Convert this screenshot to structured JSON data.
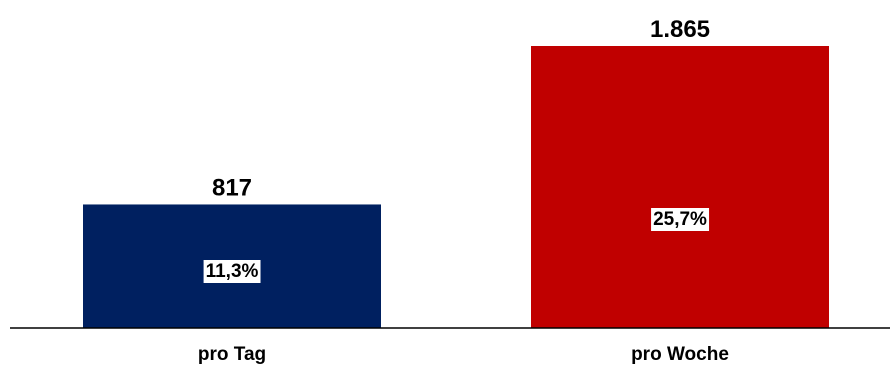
{
  "chart_data": {
    "type": "bar",
    "categories": [
      "pro Tag",
      "pro Woche"
    ],
    "values": [
      817,
      1865
    ],
    "value_labels": [
      "817",
      "1.865"
    ],
    "inner_labels": [
      "11,3%",
      "25,7%"
    ],
    "colors": [
      "#002060",
      "#C00000"
    ],
    "ylim": [
      0,
      1865
    ],
    "grid": false,
    "title": "",
    "xlabel": "",
    "ylabel": ""
  }
}
